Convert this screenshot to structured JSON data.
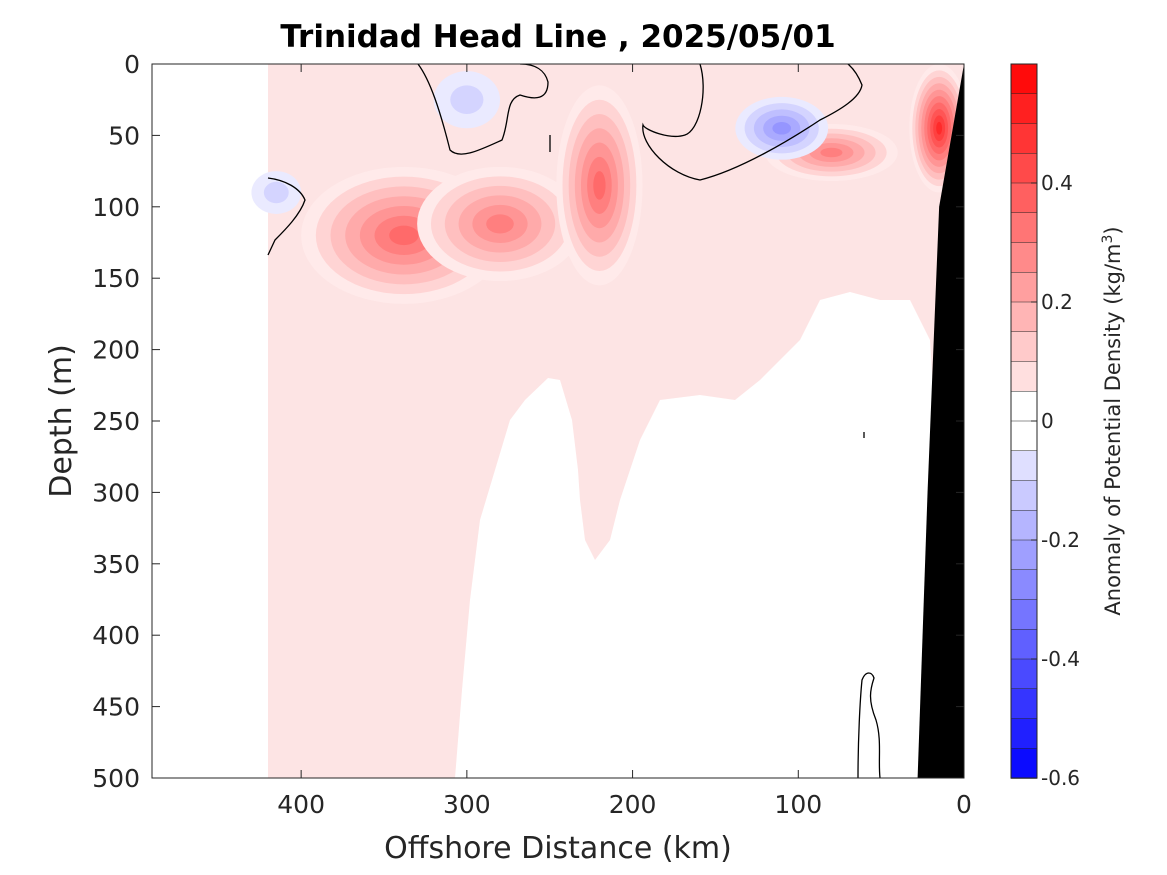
{
  "chart_data": {
    "type": "heatmap",
    "title": "Trinidad Head Line , 2025/05/01",
    "xlabel": "Offshore Distance (km)",
    "ylabel": "Depth (m)",
    "xlim": [
      490,
      0
    ],
    "ylim": [
      0,
      500
    ],
    "x_ticks": [
      "400",
      "300",
      "200",
      "100",
      "0"
    ],
    "y_ticks": [
      "0",
      "50",
      "100",
      "150",
      "200",
      "250",
      "300",
      "350",
      "400",
      "450",
      "500"
    ],
    "x_tick_values": [
      400,
      300,
      200,
      100,
      0
    ],
    "y_tick_values": [
      0,
      50,
      100,
      150,
      200,
      250,
      300,
      350,
      400,
      450,
      500
    ],
    "colorbar": {
      "label": "Anomaly of Potential Density (kg/m",
      "label_superscript": "3",
      "label_suffix": ")",
      "range": [
        -0.6,
        0.6
      ],
      "step": 0.05,
      "ticks": [
        "0.4",
        "0.2",
        "0",
        "-0.2",
        "-0.4",
        "-0.6"
      ],
      "tick_values": [
        0.4,
        0.2,
        0,
        -0.2,
        -0.4,
        -0.6
      ],
      "colormap": "blue-white-red"
    },
    "data_extent_km": [
      420,
      0
    ],
    "bathymetry": {
      "color": "#000000",
      "boundary": [
        [
          0,
          0
        ],
        [
          15,
          100
        ],
        [
          22,
          300
        ],
        [
          28,
          500
        ]
      ]
    },
    "features": [
      {
        "kind": "blob",
        "x": 338,
        "y": 120,
        "rx": 62,
        "ry": 48,
        "value": 0.35
      },
      {
        "kind": "blob",
        "x": 280,
        "y": 112,
        "rx": 50,
        "ry": 40,
        "value": 0.3
      },
      {
        "kind": "blob",
        "x": 220,
        "y": 85,
        "rx": 26,
        "ry": 70,
        "value": 0.35
      },
      {
        "kind": "blob",
        "x": 80,
        "y": 62,
        "rx": 40,
        "ry": 20,
        "value": 0.3
      },
      {
        "kind": "blob",
        "x": 15,
        "y": 45,
        "rx": 18,
        "ry": 45,
        "value": 0.5
      },
      {
        "kind": "blob",
        "x": 110,
        "y": 45,
        "rx": 28,
        "ry": 22,
        "value": -0.25
      },
      {
        "kind": "blob",
        "x": 300,
        "y": 25,
        "rx": 20,
        "ry": 20,
        "value": -0.1
      },
      {
        "kind": "blob",
        "x": 415,
        "y": 90,
        "rx": 15,
        "ry": 15,
        "value": -0.12
      }
    ]
  }
}
